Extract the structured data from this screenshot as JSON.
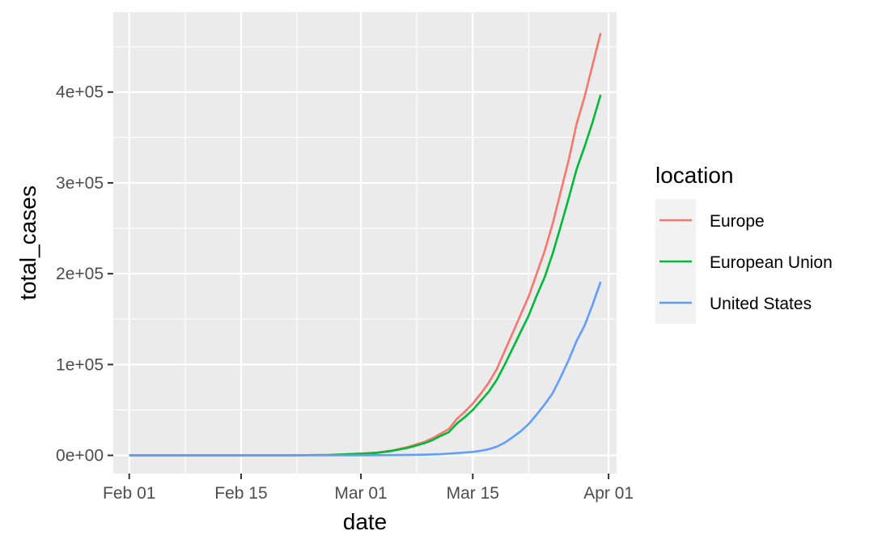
{
  "chart_data": {
    "type": "line",
    "xlabel": "date",
    "ylabel": "total_cases",
    "x_type": "date",
    "xlim": [
      "2020-01-30",
      "2020-04-02"
    ],
    "ylim": [
      -20000,
      488000
    ],
    "x_ticks": [
      {
        "date": "2020-02-01",
        "label": "Feb 01"
      },
      {
        "date": "2020-02-15",
        "label": "Feb 15"
      },
      {
        "date": "2020-03-01",
        "label": "Mar 01"
      },
      {
        "date": "2020-03-15",
        "label": "Mar 15"
      },
      {
        "date": "2020-04-01",
        "label": "Apr 01"
      }
    ],
    "x_minor_ticks": [
      "2020-02-08",
      "2020-02-22",
      "2020-03-08",
      "2020-03-22"
    ],
    "y_ticks": [
      {
        "value": 0,
        "label": "0e+00"
      },
      {
        "value": 100000,
        "label": "1e+05"
      },
      {
        "value": 200000,
        "label": "2e+05"
      },
      {
        "value": 300000,
        "label": "3e+05"
      },
      {
        "value": 400000,
        "label": "4e+05"
      }
    ],
    "y_minor_ticks": [
      50000,
      150000,
      250000,
      350000,
      450000
    ],
    "grid": true,
    "legend": {
      "title": "location",
      "position": "right"
    },
    "series": [
      {
        "name": "Europe",
        "color": "#F8766D",
        "points": [
          [
            "2020-02-01",
            0
          ],
          [
            "2020-02-15",
            0
          ],
          [
            "2020-02-22",
            100
          ],
          [
            "2020-02-26",
            500
          ],
          [
            "2020-03-01",
            2000
          ],
          [
            "2020-03-03",
            3000
          ],
          [
            "2020-03-05",
            5500
          ],
          [
            "2020-03-07",
            9500
          ],
          [
            "2020-03-09",
            15000
          ],
          [
            "2020-03-10",
            19000
          ],
          [
            "2020-03-11",
            24000
          ],
          [
            "2020-03-12",
            29000
          ],
          [
            "2020-03-13",
            40000
          ],
          [
            "2020-03-14",
            48000
          ],
          [
            "2020-03-15",
            57000
          ],
          [
            "2020-03-16",
            68000
          ],
          [
            "2020-03-17",
            80000
          ],
          [
            "2020-03-18",
            95000
          ],
          [
            "2020-03-19",
            115000
          ],
          [
            "2020-03-20",
            135000
          ],
          [
            "2020-03-21",
            155000
          ],
          [
            "2020-03-22",
            175000
          ],
          [
            "2020-03-23",
            200000
          ],
          [
            "2020-03-24",
            225000
          ],
          [
            "2020-03-25",
            255000
          ],
          [
            "2020-03-26",
            290000
          ],
          [
            "2020-03-27",
            325000
          ],
          [
            "2020-03-28",
            365000
          ],
          [
            "2020-03-29",
            395000
          ],
          [
            "2020-03-30",
            430000
          ],
          [
            "2020-03-31",
            465000
          ]
        ]
      },
      {
        "name": "European Union",
        "color": "#00BA38",
        "points": [
          [
            "2020-02-01",
            0
          ],
          [
            "2020-02-15",
            0
          ],
          [
            "2020-02-22",
            100
          ],
          [
            "2020-02-26",
            500
          ],
          [
            "2020-03-01",
            1800
          ],
          [
            "2020-03-03",
            2800
          ],
          [
            "2020-03-05",
            5000
          ],
          [
            "2020-03-07",
            8500
          ],
          [
            "2020-03-09",
            13500
          ],
          [
            "2020-03-10",
            17000
          ],
          [
            "2020-03-11",
            21500
          ],
          [
            "2020-03-12",
            25500
          ],
          [
            "2020-03-13",
            35000
          ],
          [
            "2020-03-14",
            42000
          ],
          [
            "2020-03-15",
            50000
          ],
          [
            "2020-03-16",
            60000
          ],
          [
            "2020-03-17",
            70000
          ],
          [
            "2020-03-18",
            83000
          ],
          [
            "2020-03-19",
            100000
          ],
          [
            "2020-03-20",
            118000
          ],
          [
            "2020-03-21",
            136000
          ],
          [
            "2020-03-22",
            154000
          ],
          [
            "2020-03-23",
            176000
          ],
          [
            "2020-03-24",
            196000
          ],
          [
            "2020-03-25",
            222000
          ],
          [
            "2020-03-26",
            252000
          ],
          [
            "2020-03-27",
            283000
          ],
          [
            "2020-03-28",
            315000
          ],
          [
            "2020-03-29",
            340000
          ],
          [
            "2020-03-30",
            367000
          ],
          [
            "2020-03-31",
            397000
          ]
        ]
      },
      {
        "name": "United States",
        "color": "#619CFF",
        "points": [
          [
            "2020-02-01",
            0
          ],
          [
            "2020-02-15",
            0
          ],
          [
            "2020-03-01",
            100
          ],
          [
            "2020-03-05",
            300
          ],
          [
            "2020-03-09",
            800
          ],
          [
            "2020-03-11",
            1300
          ],
          [
            "2020-03-13",
            2500
          ],
          [
            "2020-03-14",
            3200
          ],
          [
            "2020-03-15",
            3800
          ],
          [
            "2020-03-16",
            5000
          ],
          [
            "2020-03-17",
            6800
          ],
          [
            "2020-03-18",
            9500
          ],
          [
            "2020-03-19",
            14000
          ],
          [
            "2020-03-20",
            20000
          ],
          [
            "2020-03-21",
            26500
          ],
          [
            "2020-03-22",
            34500
          ],
          [
            "2020-03-23",
            45000
          ],
          [
            "2020-03-24",
            56000
          ],
          [
            "2020-03-25",
            68500
          ],
          [
            "2020-03-26",
            86000
          ],
          [
            "2020-03-27",
            105000
          ],
          [
            "2020-03-28",
            126000
          ],
          [
            "2020-03-29",
            143000
          ],
          [
            "2020-03-30",
            166000
          ],
          [
            "2020-03-31",
            191000
          ]
        ]
      }
    ]
  }
}
